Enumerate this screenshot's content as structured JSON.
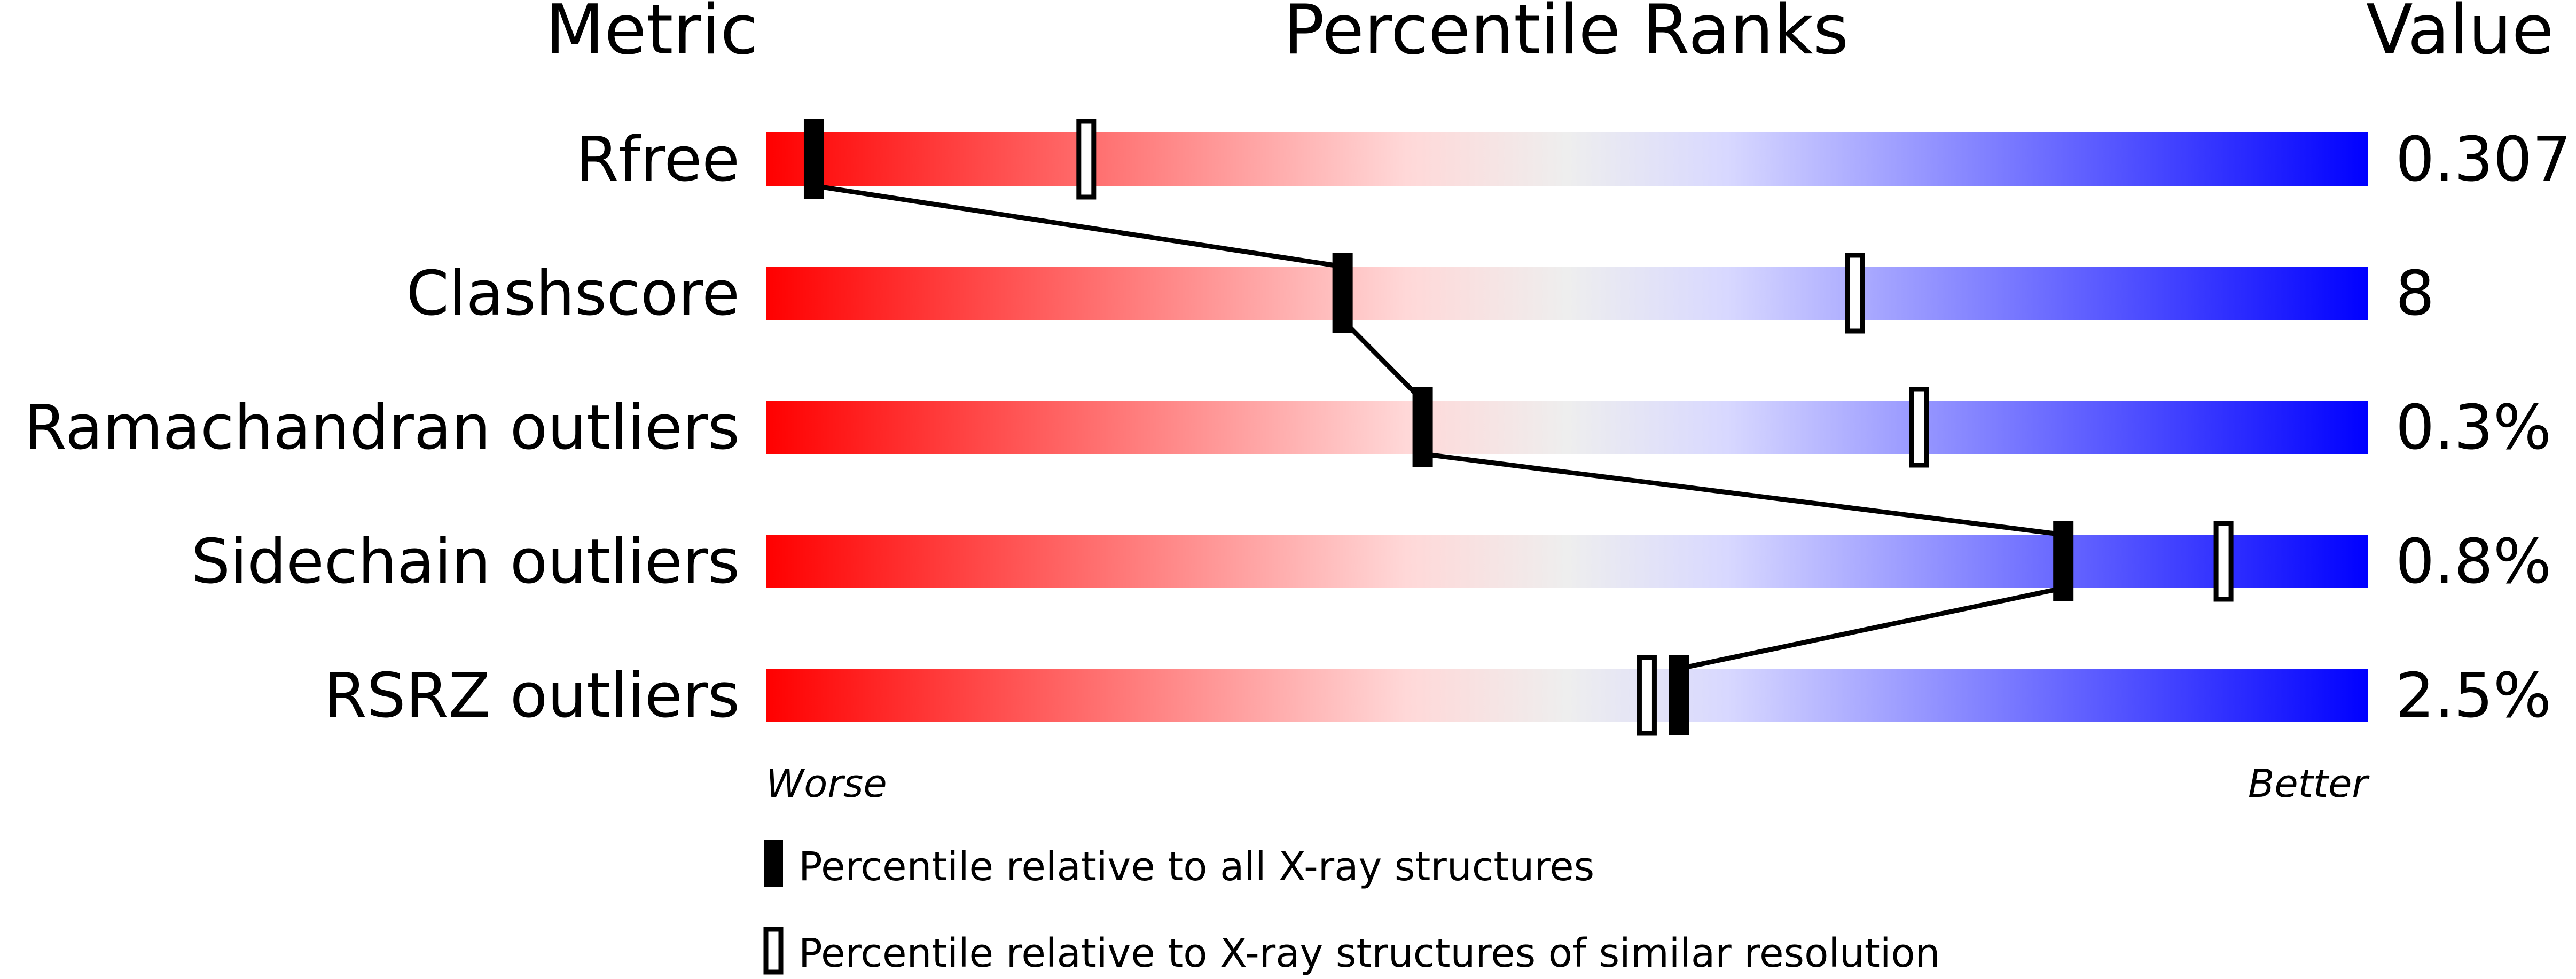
{
  "chart_data": {
    "type": "bar",
    "headers": {
      "metric": "Metric",
      "ranks": "Percentile Ranks",
      "value": "Value"
    },
    "xlim": [
      0,
      100
    ],
    "axis_labels": {
      "left": "Worse",
      "right": "Better"
    },
    "gradient_colors": [
      "#ff0000",
      "#ffd8d8",
      "#eeeeee",
      "#d8d8ff",
      "#0000ff"
    ],
    "rows": [
      {
        "metric": "Rfree",
        "value": "0.307",
        "percentile_all": 3,
        "percentile_similar": 20
      },
      {
        "metric": "Clashscore",
        "value": "8",
        "percentile_all": 36,
        "percentile_similar": 68
      },
      {
        "metric": "Ramachandran outliers",
        "value": "0.3%",
        "percentile_all": 41,
        "percentile_similar": 72
      },
      {
        "metric": "Sidechain outliers",
        "value": "0.8%",
        "percentile_all": 81,
        "percentile_similar": 91
      },
      {
        "metric": "RSRZ outliers",
        "value": "2.5%",
        "percentile_all": 57,
        "percentile_similar": 55
      }
    ],
    "legend": [
      {
        "marker": "filled",
        "label": "Percentile relative to all X-ray structures"
      },
      {
        "marker": "open",
        "label": "Percentile relative to X-ray structures of similar resolution"
      }
    ]
  }
}
